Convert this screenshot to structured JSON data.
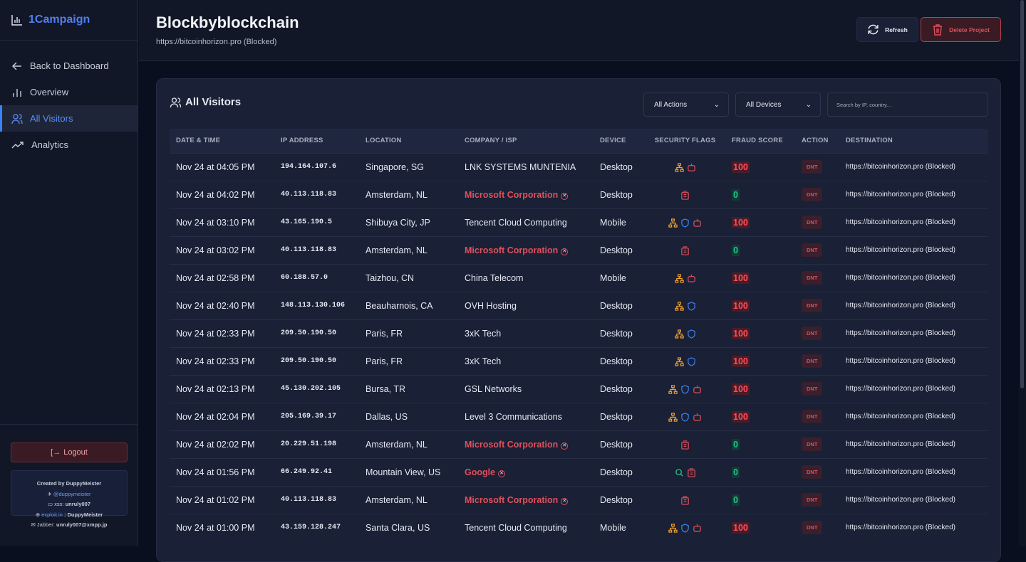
{
  "brand": {
    "name": "1Campaign",
    "icon": "bar-chart-icon",
    "color": "#4f7df3"
  },
  "sidebar": {
    "items": [
      {
        "label": "Back to Dashboard",
        "icon": "arrow-left-icon",
        "active": false
      },
      {
        "label": "Overview",
        "icon": "bar-chart-icon",
        "active": false
      },
      {
        "label": "All Visitors",
        "icon": "users-icon",
        "active": true
      },
      {
        "label": "Analytics",
        "icon": "trending-up-icon",
        "active": false
      }
    ],
    "logout": "Logout",
    "credits": {
      "created": "Created by DuppyMeister",
      "telegram": "@duppymeister",
      "xss_label": "xss:",
      "xss": "unruly007",
      "exploit_label": "exploit.in",
      "exploit": ": DuppyMeister",
      "jabber_label": "Jabber:",
      "jabber": "unruly007@xmpp.jp"
    }
  },
  "header": {
    "title": "Blockbyblockchain",
    "subtitle": "https://bitcoinhorizon.pro (Blocked)",
    "refresh": "Refresh",
    "delete": "Delete Project"
  },
  "visitors": {
    "title": "All Visitors",
    "filters": {
      "actions": "All Actions",
      "devices": "All Devices",
      "search_placeholder": "Search by IP, country..."
    },
    "columns": [
      "DATE & TIME",
      "IP ADDRESS",
      "LOCATION",
      "COMPANY / ISP",
      "DEVICE",
      "SECURITY FLAGS",
      "FRAUD SCORE",
      "ACTION",
      "DESTINATION"
    ],
    "rows": [
      {
        "time": "Nov 24 at 04:05 PM",
        "ip": "194.164.107.6",
        "location": "Singapore, SG",
        "isp": "LNK SYSTEMS MUNTENIA",
        "isp_blocked": false,
        "device": "Desktop",
        "flags": [
          "network",
          "bot"
        ],
        "score": "100",
        "action": "DNT",
        "dest": "https://bitcoinhorizon.pro (Blocked)"
      },
      {
        "time": "Nov 24 at 04:02 PM",
        "ip": "40.113.118.83",
        "location": "Amsterdam, NL",
        "isp": "Microsoft Corporation",
        "isp_blocked": true,
        "device": "Desktop",
        "flags": [
          "datacenter"
        ],
        "score": "0",
        "action": "DNT",
        "dest": "https://bitcoinhorizon.pro (Blocked)"
      },
      {
        "time": "Nov 24 at 03:10 PM",
        "ip": "43.165.190.5",
        "location": "Shibuya City, JP",
        "isp": "Tencent Cloud Computing",
        "isp_blocked": false,
        "device": "Mobile",
        "flags": [
          "network",
          "shield",
          "bot"
        ],
        "score": "100",
        "action": "DNT",
        "dest": "https://bitcoinhorizon.pro (Blocked)"
      },
      {
        "time": "Nov 24 at 03:02 PM",
        "ip": "40.113.118.83",
        "location": "Amsterdam, NL",
        "isp": "Microsoft Corporation",
        "isp_blocked": true,
        "device": "Desktop",
        "flags": [
          "datacenter"
        ],
        "score": "0",
        "action": "DNT",
        "dest": "https://bitcoinhorizon.pro (Blocked)"
      },
      {
        "time": "Nov 24 at 02:58 PM",
        "ip": "60.188.57.0",
        "location": "Taizhou, CN",
        "isp": "China Telecom",
        "isp_blocked": false,
        "device": "Mobile",
        "flags": [
          "network",
          "bot"
        ],
        "score": "100",
        "action": "DNT",
        "dest": "https://bitcoinhorizon.pro (Blocked)"
      },
      {
        "time": "Nov 24 at 02:40 PM",
        "ip": "148.113.130.106",
        "location": "Beauharnois, CA",
        "isp": "OVH Hosting",
        "isp_blocked": false,
        "device": "Desktop",
        "flags": [
          "network",
          "shield"
        ],
        "score": "100",
        "action": "DNT",
        "dest": "https://bitcoinhorizon.pro (Blocked)"
      },
      {
        "time": "Nov 24 at 02:33 PM",
        "ip": "209.50.190.50",
        "location": "Paris, FR",
        "isp": "3xK Tech",
        "isp_blocked": false,
        "device": "Desktop",
        "flags": [
          "network",
          "shield"
        ],
        "score": "100",
        "action": "DNT",
        "dest": "https://bitcoinhorizon.pro (Blocked)"
      },
      {
        "time": "Nov 24 at 02:33 PM",
        "ip": "209.50.190.50",
        "location": "Paris, FR",
        "isp": "3xK Tech",
        "isp_blocked": false,
        "device": "Desktop",
        "flags": [
          "network",
          "shield"
        ],
        "score": "100",
        "action": "DNT",
        "dest": "https://bitcoinhorizon.pro (Blocked)"
      },
      {
        "time": "Nov 24 at 02:13 PM",
        "ip": "45.130.202.105",
        "location": "Bursa, TR",
        "isp": "GSL Networks",
        "isp_blocked": false,
        "device": "Desktop",
        "flags": [
          "network",
          "shield",
          "bot"
        ],
        "score": "100",
        "action": "DNT",
        "dest": "https://bitcoinhorizon.pro (Blocked)"
      },
      {
        "time": "Nov 24 at 02:04 PM",
        "ip": "205.169.39.17",
        "location": "Dallas, US",
        "isp": "Level 3 Communications",
        "isp_blocked": false,
        "device": "Desktop",
        "flags": [
          "network",
          "shield",
          "bot"
        ],
        "score": "100",
        "action": "DNT",
        "dest": "https://bitcoinhorizon.pro (Blocked)"
      },
      {
        "time": "Nov 24 at 02:02 PM",
        "ip": "20.229.51.198",
        "location": "Amsterdam, NL",
        "isp": "Microsoft Corporation",
        "isp_blocked": true,
        "device": "Desktop",
        "flags": [
          "datacenter"
        ],
        "score": "0",
        "action": "DNT",
        "dest": "https://bitcoinhorizon.pro (Blocked)"
      },
      {
        "time": "Nov 24 at 01:56 PM",
        "ip": "66.249.92.41",
        "location": "Mountain View, US",
        "isp": "Google",
        "isp_blocked": true,
        "device": "Desktop",
        "flags": [
          "search",
          "datacenter"
        ],
        "score": "0",
        "action": "DNT",
        "dest": "https://bitcoinhorizon.pro (Blocked)"
      },
      {
        "time": "Nov 24 at 01:02 PM",
        "ip": "40.113.118.83",
        "location": "Amsterdam, NL",
        "isp": "Microsoft Corporation",
        "isp_blocked": true,
        "device": "Desktop",
        "flags": [
          "datacenter"
        ],
        "score": "0",
        "action": "DNT",
        "dest": "https://bitcoinhorizon.pro (Blocked)"
      },
      {
        "time": "Nov 24 at 01:00 PM",
        "ip": "43.159.128.247",
        "location": "Santa Clara, US",
        "isp": "Tencent Cloud Computing",
        "isp_blocked": false,
        "device": "Mobile",
        "flags": [
          "network",
          "shield",
          "bot"
        ],
        "score": "100",
        "action": "DNT",
        "dest": "https://bitcoinhorizon.pro (Blocked)"
      }
    ]
  },
  "colors": {
    "accent": "#3b82f6",
    "danger": "#e0505c",
    "success": "#22c58b",
    "warning": "#f0a030"
  }
}
